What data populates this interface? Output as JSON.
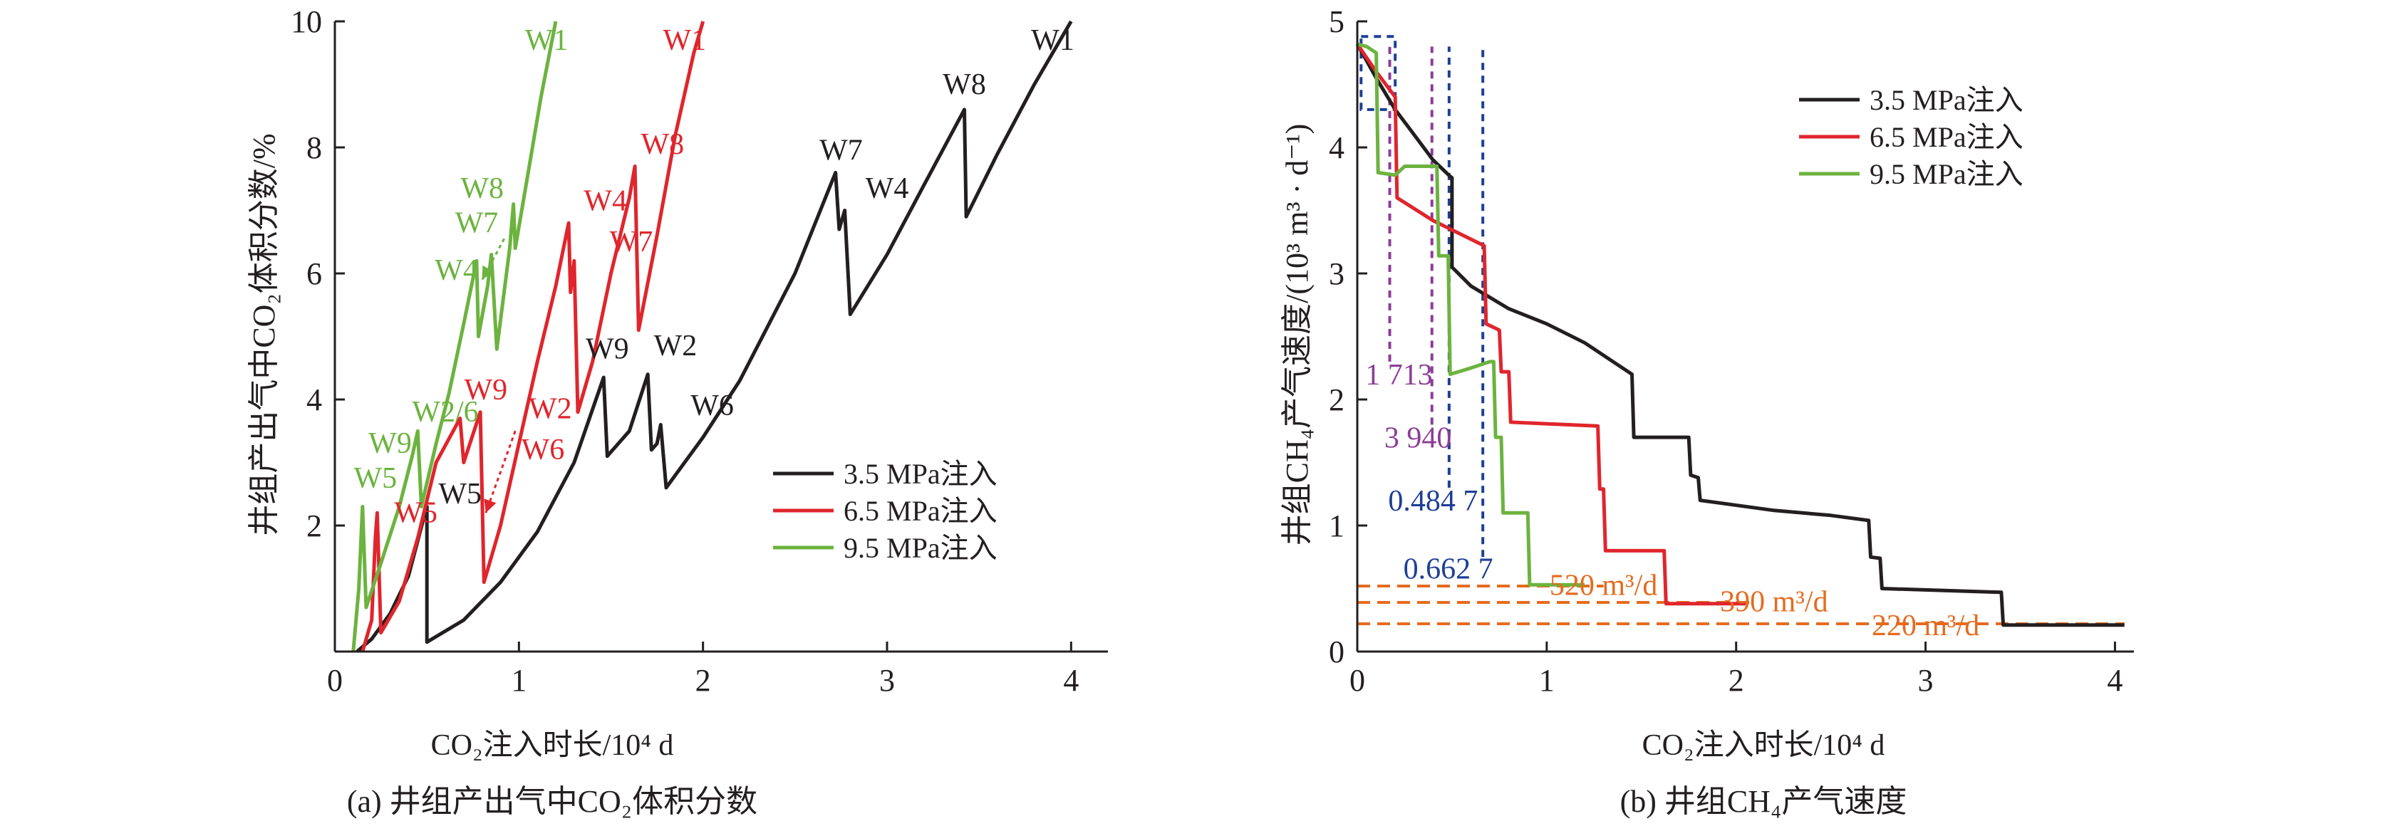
{
  "chart_data": [
    {
      "panel": "a",
      "type": "line",
      "caption": "(a) 井组产出气中CO₂体积分数",
      "xlabel": "CO₂注入时长/10⁴ d",
      "ylabel": "井组产出气中CO₂体积分数/%",
      "xlim": [
        0,
        4.2
      ],
      "ylim": [
        0,
        10
      ],
      "x_ticks": [
        "0",
        "1",
        "2",
        "3",
        "4"
      ],
      "y_ticks": [
        "2",
        "4",
        "6",
        "8",
        "10"
      ],
      "legend_position": "lower-right",
      "series": [
        {
          "name": "3.5 MPa注入",
          "color": "#231f20",
          "points": [
            [
              0.12,
              0
            ],
            [
              0.2,
              0.2
            ],
            [
              0.3,
              0.6
            ],
            [
              0.4,
              1.2
            ],
            [
              0.49,
              2.2
            ],
            [
              0.5,
              2.3
            ],
            [
              0.5,
              0.15
            ],
            [
              0.7,
              0.5
            ],
            [
              0.9,
              1.1
            ],
            [
              1.1,
              1.9
            ],
            [
              1.3,
              3
            ],
            [
              1.46,
              4.35
            ],
            [
              1.48,
              3.1
            ],
            [
              1.6,
              3.5
            ],
            [
              1.7,
              4.4
            ],
            [
              1.72,
              3.2
            ],
            [
              1.75,
              3.3
            ],
            [
              1.77,
              3.6
            ],
            [
              1.8,
              2.6
            ],
            [
              2.0,
              3.4
            ],
            [
              2.2,
              4.3
            ],
            [
              2.5,
              6
            ],
            [
              2.72,
              7.6
            ],
            [
              2.74,
              6.7
            ],
            [
              2.77,
              7.0
            ],
            [
              2.8,
              5.35
            ],
            [
              3.0,
              6.3
            ],
            [
              3.2,
              7.4
            ],
            [
              3.42,
              8.6
            ],
            [
              3.43,
              6.9
            ],
            [
              3.6,
              7.9
            ],
            [
              3.8,
              9
            ],
            [
              4.0,
              10
            ]
          ]
        },
        {
          "name": "6.5 MPa注入",
          "color": "#e0252c",
          "points": [
            [
              0.15,
              0
            ],
            [
              0.2,
              0.5
            ],
            [
              0.22,
              1.8
            ],
            [
              0.23,
              2.2
            ],
            [
              0.25,
              0.3
            ],
            [
              0.35,
              0.8
            ],
            [
              0.45,
              1.8
            ],
            [
              0.55,
              3
            ],
            [
              0.68,
              3.7
            ],
            [
              0.7,
              3.0
            ],
            [
              0.79,
              3.8
            ],
            [
              0.81,
              1.1
            ],
            [
              0.9,
              2.0
            ],
            [
              1.0,
              3.3
            ],
            [
              1.1,
              4.6
            ],
            [
              1.2,
              5.8
            ],
            [
              1.27,
              6.8
            ],
            [
              1.28,
              5.7
            ],
            [
              1.3,
              6.2
            ],
            [
              1.32,
              3.8
            ],
            [
              1.4,
              4.6
            ],
            [
              1.5,
              6.0
            ],
            [
              1.6,
              7.2
            ],
            [
              1.63,
              7.7
            ],
            [
              1.65,
              5.1
            ],
            [
              1.75,
              6.6
            ],
            [
              1.85,
              8.2
            ],
            [
              1.95,
              9.5
            ],
            [
              2.0,
              10
            ]
          ]
        },
        {
          "name": "9.5 MPa注入",
          "color": "#6cb33f",
          "points": [
            [
              0.1,
              0
            ],
            [
              0.13,
              1
            ],
            [
              0.15,
              2.3
            ],
            [
              0.17,
              0.7
            ],
            [
              0.25,
              1.4
            ],
            [
              0.35,
              2.3
            ],
            [
              0.42,
              3.1
            ],
            [
              0.45,
              3.5
            ],
            [
              0.47,
              2.3
            ],
            [
              0.55,
              3.3
            ],
            [
              0.62,
              4.1
            ],
            [
              0.7,
              5.2
            ],
            [
              0.77,
              6.2
            ],
            [
              0.78,
              5.0
            ],
            [
              0.83,
              5.8
            ],
            [
              0.85,
              6.3
            ],
            [
              0.88,
              4.8
            ],
            [
              0.95,
              6.4
            ],
            [
              0.97,
              7.1
            ],
            [
              0.98,
              6.4
            ],
            [
              1.05,
              7.6
            ],
            [
              1.12,
              8.8
            ],
            [
              1.2,
              10
            ]
          ]
        }
      ],
      "annotations": [
        {
          "text": "W1",
          "color": "#231f20",
          "x": 3.9,
          "y": 9.55
        },
        {
          "text": "W8",
          "color": "#231f20",
          "x": 3.42,
          "y": 8.85
        },
        {
          "text": "W7",
          "color": "#231f20",
          "x": 2.75,
          "y": 7.8
        },
        {
          "text": "W4",
          "color": "#231f20",
          "x": 3.0,
          "y": 7.2
        },
        {
          "text": "W9",
          "color": "#231f20",
          "x": 1.48,
          "y": 4.65
        },
        {
          "text": "W2",
          "color": "#231f20",
          "x": 1.85,
          "y": 4.7
        },
        {
          "text": "W6",
          "color": "#231f20",
          "x": 2.05,
          "y": 3.75
        },
        {
          "text": "W5",
          "color": "#231f20",
          "x": 0.68,
          "y": 2.35
        },
        {
          "text": "W1",
          "color": "#e0252c",
          "x": 1.9,
          "y": 9.55
        },
        {
          "text": "W8",
          "color": "#e0252c",
          "x": 1.78,
          "y": 7.9
        },
        {
          "text": "W4",
          "color": "#e0252c",
          "x": 1.47,
          "y": 7.0
        },
        {
          "text": "W7",
          "color": "#e0252c",
          "x": 1.61,
          "y": 6.35
        },
        {
          "text": "W9",
          "color": "#e0252c",
          "x": 0.82,
          "y": 4.0
        },
        {
          "text": "W2",
          "color": "#e0252c",
          "x": 1.17,
          "y": 3.7
        },
        {
          "text": "W6",
          "color": "#e0252c",
          "x": 1.13,
          "y": 3.05
        },
        {
          "text": "W5",
          "color": "#e0252c",
          "x": 0.44,
          "y": 2.05
        },
        {
          "text": "W1",
          "color": "#6cb33f",
          "x": 1.15,
          "y": 9.55
        },
        {
          "text": "W8",
          "color": "#6cb33f",
          "x": 0.8,
          "y": 7.2
        },
        {
          "text": "W7",
          "color": "#6cb33f",
          "x": 0.77,
          "y": 6.65
        },
        {
          "text": "W4",
          "color": "#6cb33f",
          "x": 0.66,
          "y": 5.9
        },
        {
          "text": "W2/6",
          "color": "#6cb33f",
          "x": 0.6,
          "y": 3.65
        },
        {
          "text": "W9",
          "color": "#6cb33f",
          "x": 0.3,
          "y": 3.15
        },
        {
          "text": "W5",
          "color": "#6cb33f",
          "x": 0.22,
          "y": 2.6
        }
      ],
      "arrows": [
        {
          "color": "#6cb33f",
          "from": [
            0.92,
            6.55
          ],
          "to": [
            0.8,
            5.9
          ]
        },
        {
          "color": "#e0252c",
          "from": [
            0.98,
            3.5
          ],
          "to": [
            0.82,
            2.2
          ]
        }
      ]
    },
    {
      "panel": "b",
      "type": "line",
      "caption": "(b) 井组CH₄产气速度",
      "xlabel": "CO₂注入时长/10⁴ d",
      "ylabel": "井组CH₄产气速度/(10³ m³ · d⁻¹)",
      "xlim": [
        0,
        4.1
      ],
      "ylim": [
        0,
        5
      ],
      "x_ticks": [
        "0",
        "1",
        "2",
        "3",
        "4"
      ],
      "y_ticks": [
        "0",
        "1",
        "2",
        "3",
        "4",
        "5"
      ],
      "legend_position": "top-right",
      "series": [
        {
          "name": "3.5 MPa注入",
          "color": "#231f20",
          "points": [
            [
              0,
              4.82
            ],
            [
              0.1,
              4.55
            ],
            [
              0.2,
              4.3
            ],
            [
              0.3,
              4.1
            ],
            [
              0.4,
              3.9
            ],
            [
              0.49,
              3.77
            ],
            [
              0.5,
              3.76
            ],
            [
              0.5,
              3.05
            ],
            [
              0.6,
              2.9
            ],
            [
              0.8,
              2.72
            ],
            [
              1.0,
              2.6
            ],
            [
              1.2,
              2.45
            ],
            [
              1.45,
              2.2
            ],
            [
              1.46,
              1.7
            ],
            [
              1.75,
              1.7
            ],
            [
              1.76,
              1.4
            ],
            [
              1.8,
              1.38
            ],
            [
              1.81,
              1.2
            ],
            [
              2.2,
              1.12
            ],
            [
              2.5,
              1.08
            ],
            [
              2.7,
              1.04
            ],
            [
              2.71,
              0.75
            ],
            [
              2.76,
              0.74
            ],
            [
              2.77,
              0.5
            ],
            [
              3.4,
              0.47
            ],
            [
              3.41,
              0.21
            ],
            [
              4.05,
              0.21
            ]
          ]
        },
        {
          "name": "6.5 MPa注入",
          "color": "#e0252c",
          "points": [
            [
              0,
              4.82
            ],
            [
              0.1,
              4.6
            ],
            [
              0.2,
              4.4
            ],
            [
              0.21,
              3.6
            ],
            [
              0.4,
              3.42
            ],
            [
              0.67,
              3.22
            ],
            [
              0.68,
              2.6
            ],
            [
              0.75,
              2.55
            ],
            [
              0.76,
              2.22
            ],
            [
              0.8,
              2.22
            ],
            [
              0.81,
              1.82
            ],
            [
              1.27,
              1.79
            ],
            [
              1.28,
              1.29
            ],
            [
              1.3,
              1.29
            ],
            [
              1.31,
              0.8
            ],
            [
              1.62,
              0.8
            ],
            [
              1.63,
              0.38
            ],
            [
              2.05,
              0.38
            ]
          ]
        },
        {
          "name": "9.5 MPa注入",
          "color": "#6cb33f",
          "points": [
            [
              0,
              4.82
            ],
            [
              0.05,
              4.8
            ],
            [
              0.1,
              4.75
            ],
            [
              0.11,
              3.8
            ],
            [
              0.2,
              3.78
            ],
            [
              0.25,
              3.85
            ],
            [
              0.3,
              3.85
            ],
            [
              0.4,
              3.85
            ],
            [
              0.42,
              3.85
            ],
            [
              0.43,
              3.14
            ],
            [
              0.48,
              3.14
            ],
            [
              0.49,
              2.2
            ],
            [
              0.6,
              2.25
            ],
            [
              0.7,
              2.3
            ],
            [
              0.72,
              2.3
            ],
            [
              0.73,
              1.7
            ],
            [
              0.76,
              1.7
            ],
            [
              0.77,
              1.1
            ],
            [
              0.9,
              1.1
            ],
            [
              0.91,
              0.53
            ],
            [
              1.2,
              0.53
            ]
          ]
        }
      ],
      "annotations": [
        {
          "text": "1 713",
          "color": "#8c3d97",
          "x": 0.22,
          "y": 2.12
        },
        {
          "text": "3 940",
          "color": "#8c3d97",
          "x": 0.32,
          "y": 1.62
        },
        {
          "text": "0.484 7",
          "color": "#1e3f95",
          "x": 0.4,
          "y": 1.12
        },
        {
          "text": "0.662 7",
          "color": "#1e3f95",
          "x": 0.48,
          "y": 0.58
        },
        {
          "text": "520 m³/d",
          "color": "#e46c1f",
          "x": 1.3,
          "y": 0.45
        },
        {
          "text": "390 m³/d",
          "color": "#e46c1f",
          "x": 2.2,
          "y": 0.32
        },
        {
          "text": "220 m³/d",
          "color": "#e46c1f",
          "x": 3.0,
          "y": 0.13
        }
      ],
      "reference_lines": [
        {
          "type": "horizontal",
          "y": 0.52,
          "x_range": [
            0,
            1.3
          ],
          "color": "#e46c1f"
        },
        {
          "type": "horizontal",
          "y": 0.39,
          "x_range": [
            0,
            2.1
          ],
          "color": "#e46c1f"
        },
        {
          "type": "horizontal",
          "y": 0.22,
          "x_range": [
            0,
            4.05
          ],
          "color": "#e46c1f"
        },
        {
          "type": "vertical",
          "x": 0.1713,
          "y_range": [
            2.3,
            4.8
          ],
          "color": "#8c3d97"
        },
        {
          "type": "vertical",
          "x": 0.394,
          "y_range": [
            1.8,
            4.8
          ],
          "color": "#8c3d97"
        },
        {
          "type": "vertical",
          "x": 0.4847,
          "y_range": [
            1.3,
            4.8
          ],
          "color": "#1e3f95"
        },
        {
          "type": "vertical",
          "x": 0.6627,
          "y_range": [
            0.75,
            4.8
          ],
          "color": "#1e3f95"
        }
      ],
      "highlight_box": {
        "x": [
          0.02,
          0.2
        ],
        "y": [
          4.3,
          4.88
        ],
        "color": "#1e3f95"
      }
    }
  ]
}
